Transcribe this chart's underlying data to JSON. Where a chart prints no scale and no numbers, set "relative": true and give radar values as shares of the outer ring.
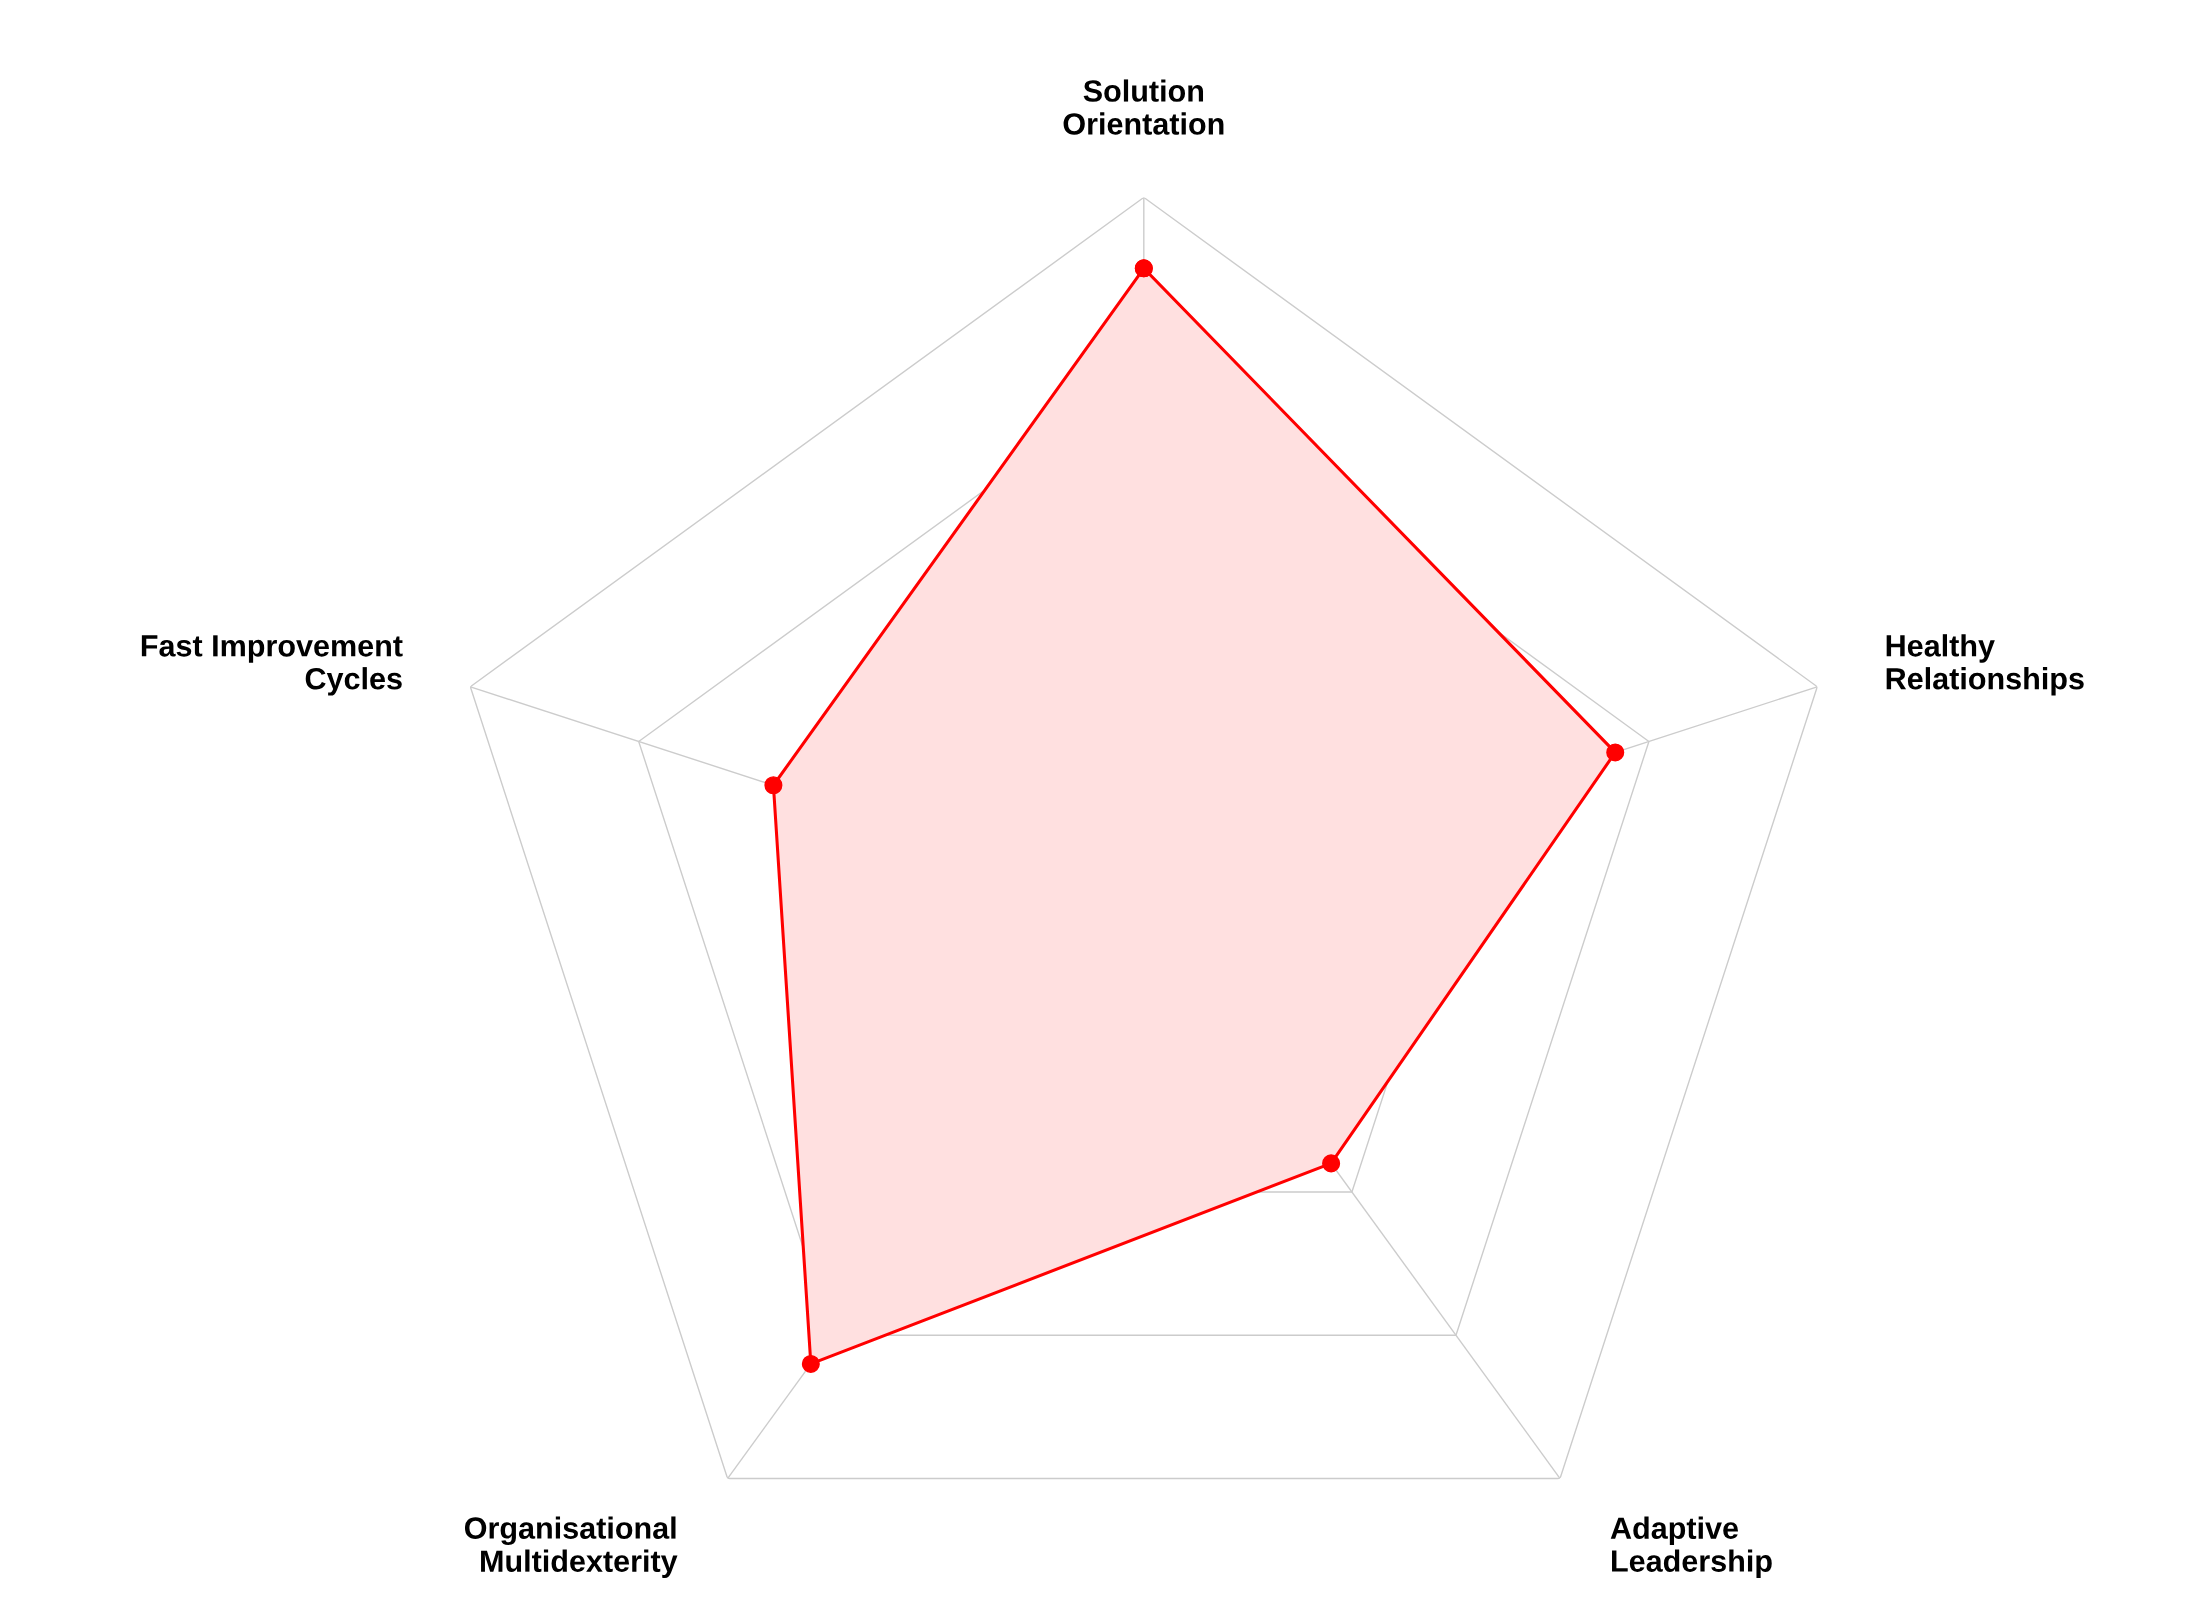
{
  "chart_data": {
    "type": "radar",
    "relative": true,
    "grid": true,
    "marker": "circle",
    "line_style": "solid",
    "categories": [
      "Solution\nOrientation",
      "Healthy\nRelationships",
      "Adaptive\nLeadership",
      "Organisational\nMultidexterity",
      "Fast Improvement\nCycles"
    ],
    "series": [
      {
        "color": "#ff0000",
        "values": [
          0.9,
          0.7,
          0.45,
          0.8,
          0.55
        ]
      }
    ]
  }
}
